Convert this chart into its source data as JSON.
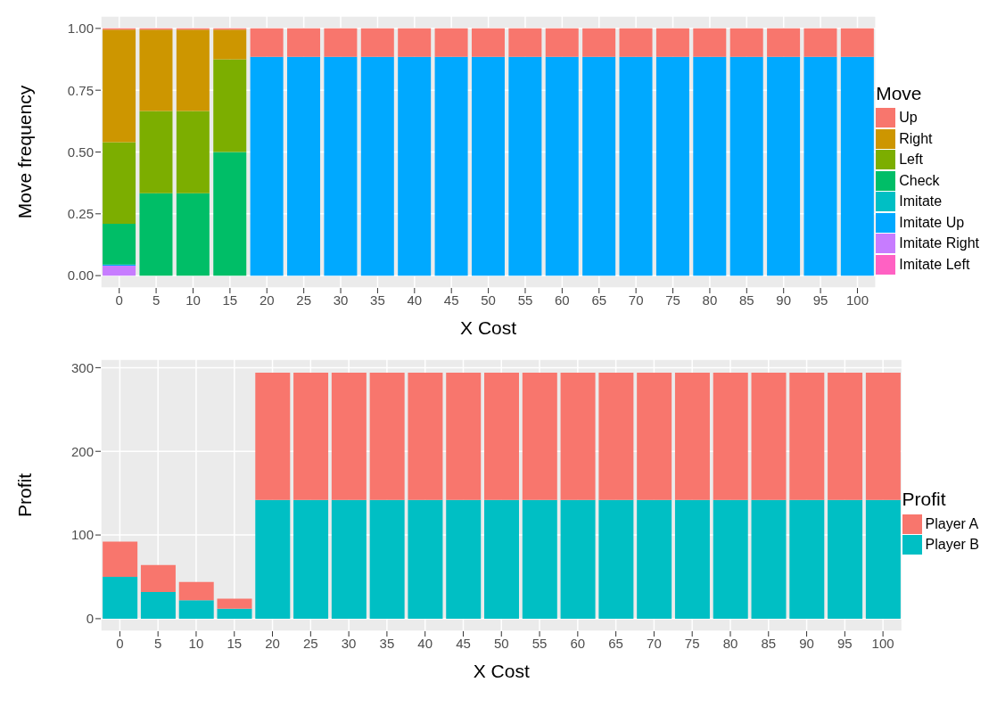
{
  "chart_data": [
    {
      "type": "bar",
      "stacked": true,
      "xlabel": "X Cost",
      "ylabel": "Move frequency",
      "legend_title": "Move",
      "legend": "right",
      "grid": true,
      "categories": [
        "0",
        "5",
        "10",
        "15",
        "20",
        "25",
        "30",
        "35",
        "40",
        "45",
        "50",
        "55",
        "60",
        "65",
        "70",
        "75",
        "80",
        "85",
        "90",
        "95",
        "100"
      ],
      "ylim": [
        -0.05,
        1.05
      ],
      "yticks": [
        {
          "value": 0,
          "label": "0.00"
        },
        {
          "value": 0.25,
          "label": "0.25"
        },
        {
          "value": 0.5,
          "label": "0.50"
        },
        {
          "value": 0.75,
          "label": "0.75"
        },
        {
          "value": 1,
          "label": "1.00"
        }
      ],
      "series": [
        {
          "name": "Imitate Left",
          "color": "#ff61c3",
          "values": [
            0,
            0,
            0,
            0,
            0,
            0,
            0,
            0,
            0,
            0,
            0,
            0,
            0,
            0,
            0,
            0,
            0,
            0,
            0,
            0,
            0
          ]
        },
        {
          "name": "Imitate Right",
          "color": "#c77cff",
          "values": [
            0.04,
            0,
            0,
            0,
            0,
            0,
            0,
            0,
            0,
            0,
            0,
            0,
            0,
            0,
            0,
            0,
            0,
            0,
            0,
            0,
            0
          ]
        },
        {
          "name": "Imitate Up",
          "color": "#00a9ff",
          "values": [
            0.005,
            0,
            0,
            0,
            0.885,
            0.885,
            0.885,
            0.885,
            0.885,
            0.885,
            0.885,
            0.885,
            0.885,
            0.885,
            0.885,
            0.885,
            0.885,
            0.885,
            0.885,
            0.885,
            0.885
          ]
        },
        {
          "name": "Imitate",
          "color": "#00bfc4",
          "values": [
            0,
            0,
            0,
            0,
            0,
            0,
            0,
            0,
            0,
            0,
            0,
            0,
            0,
            0,
            0,
            0,
            0,
            0,
            0,
            0,
            0
          ]
        },
        {
          "name": "Check",
          "color": "#00be67",
          "values": [
            0.165,
            0.333,
            0.333,
            0.5,
            0,
            0,
            0,
            0,
            0,
            0,
            0,
            0,
            0,
            0,
            0,
            0,
            0,
            0,
            0,
            0,
            0
          ]
        },
        {
          "name": "Left",
          "color": "#7cae00",
          "values": [
            0.33,
            0.333,
            0.333,
            0.375,
            0,
            0,
            0,
            0,
            0,
            0,
            0,
            0,
            0,
            0,
            0,
            0,
            0,
            0,
            0,
            0,
            0
          ]
        },
        {
          "name": "Right",
          "color": "#cd9600",
          "values": [
            0.455,
            0.329,
            0.329,
            0.12,
            0,
            0,
            0,
            0,
            0,
            0,
            0,
            0,
            0,
            0,
            0,
            0,
            0,
            0,
            0,
            0,
            0
          ]
        },
        {
          "name": "Up",
          "color": "#f8766d",
          "values": [
            0.005,
            0.005,
            0.005,
            0.005,
            0.115,
            0.115,
            0.115,
            0.115,
            0.115,
            0.115,
            0.115,
            0.115,
            0.115,
            0.115,
            0.115,
            0.115,
            0.115,
            0.115,
            0.115,
            0.115,
            0.115
          ]
        }
      ]
    },
    {
      "type": "bar",
      "stacked": true,
      "xlabel": "X Cost",
      "ylabel": "Profit",
      "legend_title": "Profit",
      "legend": "right",
      "grid": true,
      "categories": [
        "0",
        "5",
        "10",
        "15",
        "20",
        "25",
        "30",
        "35",
        "40",
        "45",
        "50",
        "55",
        "60",
        "65",
        "70",
        "75",
        "80",
        "85",
        "90",
        "95",
        "100"
      ],
      "ylim": [
        -15,
        310
      ],
      "yticks": [
        0,
        100,
        200,
        300
      ],
      "series": [
        {
          "name": "Player B",
          "color": "#00bfc4",
          "values": [
            50,
            32,
            22,
            12,
            142,
            142,
            142,
            142,
            142,
            142,
            142,
            142,
            142,
            142,
            142,
            142,
            142,
            142,
            142,
            142,
            142
          ]
        },
        {
          "name": "Player A",
          "color": "#f8766d",
          "values": [
            42,
            32,
            22,
            12,
            152,
            152,
            152,
            152,
            152,
            152,
            152,
            152,
            152,
            152,
            152,
            152,
            152,
            152,
            152,
            152,
            152
          ]
        }
      ]
    }
  ]
}
